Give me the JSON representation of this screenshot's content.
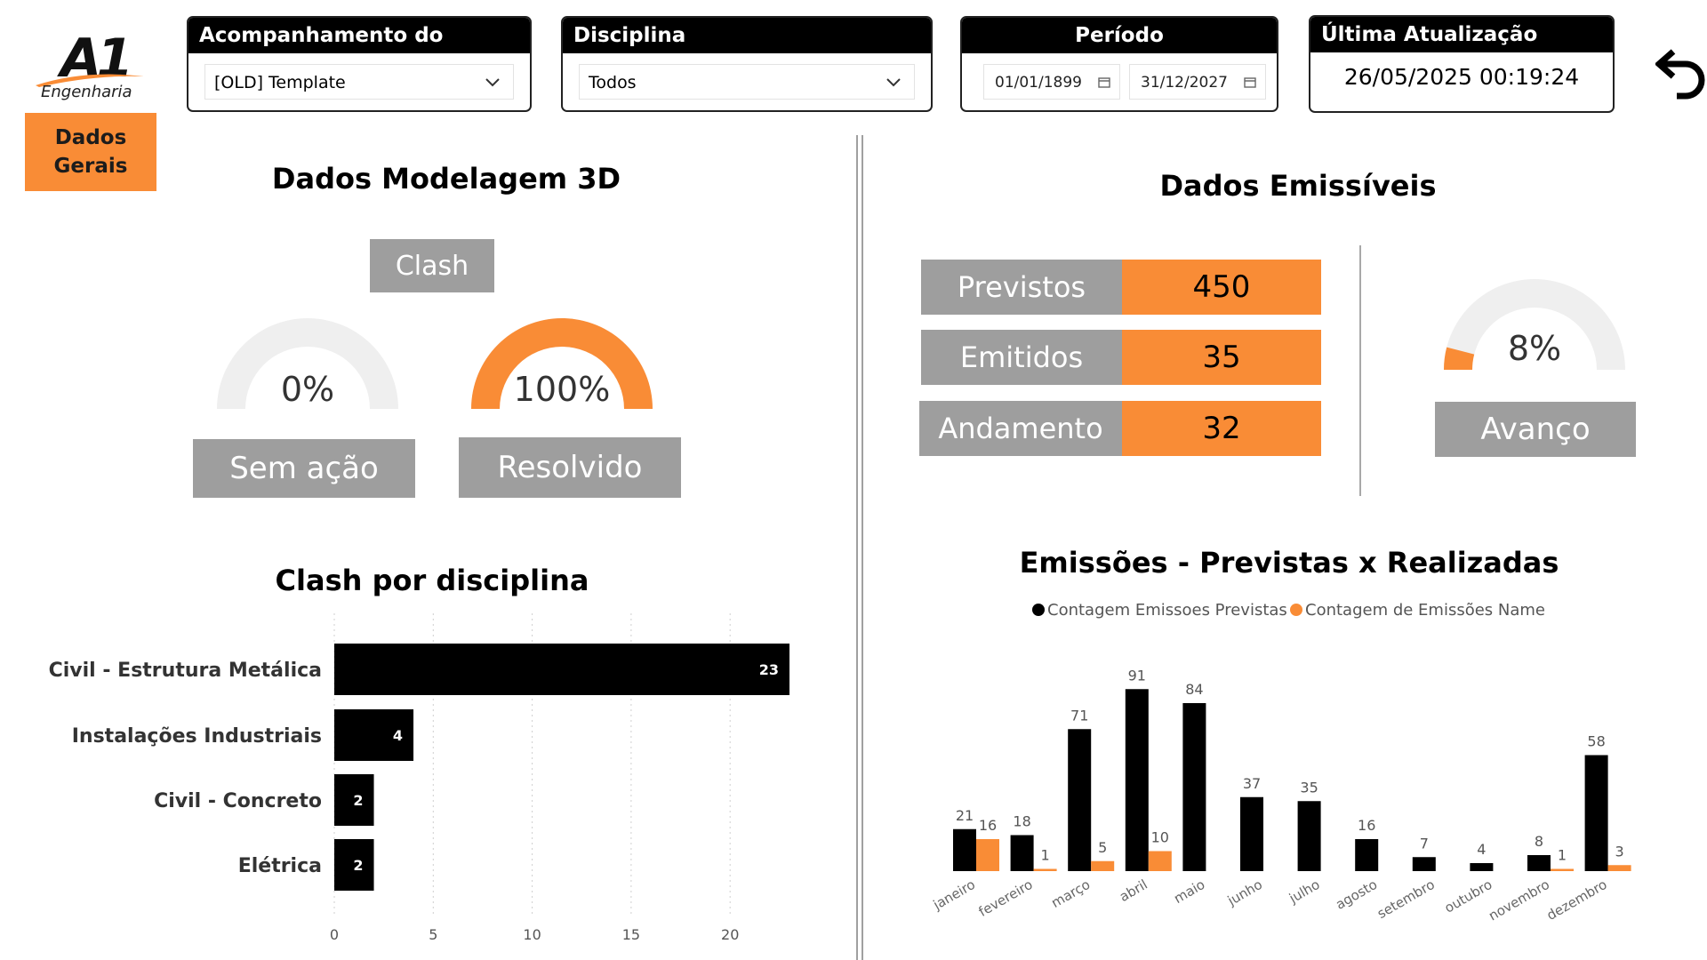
{
  "brand": {
    "logo_text": "A1",
    "logo_subtitle": "Engenharia"
  },
  "nav": {
    "button_label": "Dados Gerais"
  },
  "filters": {
    "projeto": {
      "title": "Acompanhamento do Projeto",
      "value": "[OLD] Template"
    },
    "disciplina": {
      "title": "Disciplina",
      "value": "Todos"
    },
    "periodo": {
      "title": "Período",
      "start": "01/01/1899",
      "end": "31/12/2027"
    },
    "atualizacao": {
      "title": "Última Atualização",
      "value": "26/05/2025 00:19:24"
    }
  },
  "modelagem": {
    "title": "Dados Modelagem 3D",
    "clash_label": "Clash",
    "gauges": [
      {
        "label": "Sem ação",
        "value_text": "0%",
        "fraction": 0.0
      },
      {
        "label": "Resolvido",
        "value_text": "100%",
        "fraction": 1.0
      }
    ]
  },
  "emissiveis": {
    "title": "Dados Emissíveis",
    "stats": [
      {
        "label": "Previstos",
        "value": "450"
      },
      {
        "label": "Emitidos",
        "value": "35"
      },
      {
        "label": "Andamento",
        "value": "32"
      }
    ],
    "avanco": {
      "label": "Avanço",
      "value_text": "8%",
      "fraction": 0.08
    }
  },
  "colors": {
    "accent": "#f98c36",
    "grey": "#9e9e9e",
    "gauge_track": "#efefef",
    "dark": "#000000"
  },
  "icons": {
    "back": "undo-arrow-icon",
    "calendar": "calendar-icon",
    "dropdown": "chevron-down-icon"
  },
  "clash_chart": {
    "title": "Clash por disciplina",
    "chart_data": {
      "type": "bar",
      "orientation": "horizontal",
      "categories": [
        "Civil - Estrutura Metálica",
        "Instalações Industriais",
        "Civil - Concreto",
        "Elétrica"
      ],
      "values": [
        23,
        4,
        2,
        2
      ],
      "x_ticks": [
        "0",
        "5",
        "10",
        "15",
        "20"
      ],
      "xlim": [
        0,
        25
      ],
      "grid": true
    }
  },
  "emissoes_chart": {
    "title": "Emissões - Previstas x Realizadas",
    "chart_data": {
      "type": "bar",
      "categories": [
        "janeiro",
        "fevereiro",
        "março",
        "abril",
        "maio",
        "junho",
        "julho",
        "agosto",
        "setembro",
        "outubro",
        "novembro",
        "dezembro"
      ],
      "series": [
        {
          "name": "Contagem Emissoes Previstas",
          "color": "#000000",
          "values": [
            21,
            18,
            71,
            91,
            84,
            37,
            35,
            16,
            7,
            4,
            8,
            58
          ]
        },
        {
          "name": "Contagem de Emissões Name",
          "color": "#f98c36",
          "values": [
            16,
            1,
            5,
            10,
            null,
            null,
            null,
            null,
            null,
            null,
            1,
            3
          ]
        }
      ],
      "legend": "top-center",
      "ylim": [
        0,
        100
      ]
    }
  }
}
